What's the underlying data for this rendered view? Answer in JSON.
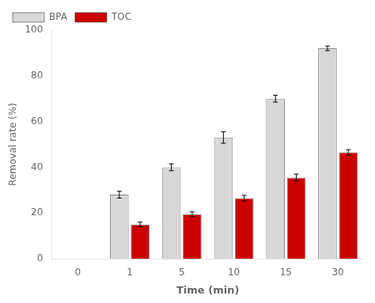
{
  "chart_data": {
    "type": "bar",
    "categories": [
      "0",
      "1",
      "5",
      "10",
      "15",
      "30"
    ],
    "series": [
      {
        "name": "BPA",
        "color": "#d8d8d8",
        "values": [
          null,
          28,
          40,
          53,
          70,
          92
        ],
        "errors": [
          null,
          1.5,
          1.5,
          2.5,
          1.5,
          1.0
        ]
      },
      {
        "name": "TOC",
        "color": "#cc0000",
        "values": [
          null,
          15,
          19.5,
          26.5,
          35.5,
          46.5
        ],
        "errors": [
          null,
          1.0,
          1.0,
          1.2,
          1.5,
          1.2
        ]
      }
    ],
    "xlabel": "Time (min)",
    "ylabel": "Removal rate (%)",
    "ylim": [
      0,
      100
    ],
    "yticks": [
      0,
      20,
      40,
      60,
      80,
      100
    ],
    "grid": false,
    "legend": "upper left"
  }
}
